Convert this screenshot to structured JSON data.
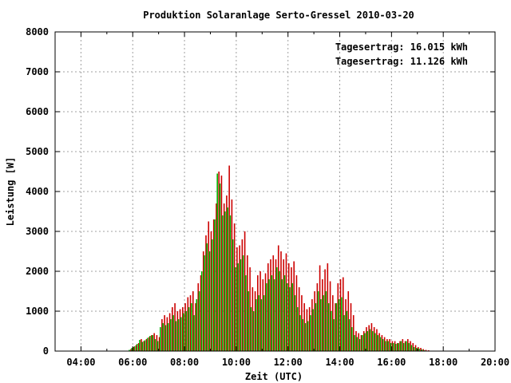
{
  "chart_data": {
    "type": "bar",
    "title": "Produktion Solaranlage Serto-Gressel 2010-03-20",
    "xlabel": "Zeit (UTC)",
    "ylabel": "Leistung [W]",
    "xlim": [
      3,
      20
    ],
    "ylim": [
      0,
      8000
    ],
    "x_ticks": [
      "04:00",
      "06:00",
      "08:00",
      "10:00",
      "12:00",
      "14:00",
      "16:00",
      "18:00",
      "20:00"
    ],
    "y_ticks": [
      "0",
      "1000",
      "2000",
      "3000",
      "4000",
      "5000",
      "6000",
      "7000",
      "8000"
    ],
    "grid": true,
    "legend": "top-right",
    "annotations": [
      {
        "text": "Tagesertrag: 16.015 kWh",
        "color": "#cc0000"
      },
      {
        "text": "Tagesertrag: 11.126 kWh",
        "color": "#00b300"
      }
    ],
    "series": [
      {
        "color": "#cc0000",
        "x": [
          5.9,
          6.0,
          6.1,
          6.2,
          6.3,
          6.4,
          6.5,
          6.6,
          6.7,
          6.8,
          6.9,
          7.0,
          7.1,
          7.2,
          7.3,
          7.4,
          7.5,
          7.6,
          7.7,
          7.8,
          7.9,
          8.0,
          8.1,
          8.2,
          8.3,
          8.4,
          8.5,
          8.6,
          8.7,
          8.8,
          8.9,
          9.0,
          9.1,
          9.2,
          9.3,
          9.4,
          9.5,
          9.6,
          9.7,
          9.8,
          9.9,
          10.0,
          10.1,
          10.2,
          10.3,
          10.4,
          10.5,
          10.6,
          10.7,
          10.8,
          10.9,
          11.0,
          11.1,
          11.2,
          11.3,
          11.4,
          11.5,
          11.6,
          11.7,
          11.8,
          11.9,
          12.0,
          12.1,
          12.2,
          12.3,
          12.4,
          12.5,
          12.6,
          12.7,
          12.8,
          12.9,
          13.0,
          13.1,
          13.2,
          13.3,
          13.4,
          13.5,
          13.6,
          13.7,
          13.8,
          13.9,
          14.0,
          14.1,
          14.2,
          14.3,
          14.4,
          14.5,
          14.6,
          14.7,
          14.8,
          14.9,
          15.0,
          15.1,
          15.2,
          15.3,
          15.4,
          15.5,
          15.6,
          15.7,
          15.8,
          15.9,
          16.0,
          16.1,
          16.2,
          16.3,
          16.4,
          16.5,
          16.6,
          16.7,
          16.8,
          16.9,
          17.0,
          17.1,
          17.2,
          17.3,
          17.4,
          17.5
        ],
        "values": [
          50,
          100,
          150,
          200,
          300,
          250,
          300,
          350,
          400,
          450,
          400,
          350,
          800,
          900,
          850,
          950,
          1100,
          1200,
          1000,
          1050,
          1100,
          1200,
          1350,
          1400,
          1500,
          1200,
          1700,
          1900,
          2500,
          2900,
          3250,
          3000,
          3300,
          3700,
          4500,
          4400,
          3700,
          3900,
          4650,
          3800,
          3200,
          2600,
          2650,
          2800,
          3000,
          2400,
          2100,
          1600,
          1500,
          1900,
          2000,
          1800,
          1950,
          2200,
          2300,
          2400,
          2300,
          2650,
          2500,
          2300,
          2450,
          2200,
          2100,
          2250,
          1900,
          1600,
          1400,
          1200,
          1050,
          1100,
          1300,
          1500,
          1700,
          2150,
          1800,
          2050,
          2200,
          1750,
          1400,
          1200,
          1700,
          1800,
          1850,
          1300,
          1500,
          1200,
          900,
          500,
          450,
          400,
          500,
          600,
          650,
          700,
          600,
          550,
          450,
          400,
          350,
          300,
          300,
          250,
          250,
          200,
          250,
          300,
          250,
          300,
          250,
          200,
          150,
          100,
          80,
          50,
          30,
          20,
          10
        ]
      },
      {
        "color": "#00b300",
        "x": [
          5.9,
          6.0,
          6.1,
          6.2,
          6.3,
          6.4,
          6.5,
          6.6,
          6.7,
          6.8,
          6.9,
          7.0,
          7.1,
          7.2,
          7.3,
          7.4,
          7.5,
          7.6,
          7.7,
          7.8,
          7.9,
          8.0,
          8.1,
          8.2,
          8.3,
          8.4,
          8.5,
          8.6,
          8.7,
          8.8,
          8.9,
          9.0,
          9.1,
          9.2,
          9.3,
          9.4,
          9.5,
          9.6,
          9.7,
          9.8,
          9.9,
          10.0,
          10.1,
          10.2,
          10.3,
          10.4,
          10.5,
          10.6,
          10.7,
          10.8,
          10.9,
          11.0,
          11.1,
          11.2,
          11.3,
          11.4,
          11.5,
          11.6,
          11.7,
          11.8,
          11.9,
          12.0,
          12.1,
          12.2,
          12.3,
          12.4,
          12.5,
          12.6,
          12.7,
          12.8,
          12.9,
          13.0,
          13.1,
          13.2,
          13.3,
          13.4,
          13.5,
          13.6,
          13.7,
          13.8,
          13.9,
          14.0,
          14.1,
          14.2,
          14.3,
          14.4,
          14.5,
          14.6,
          14.7,
          14.8,
          14.9,
          15.0,
          15.1,
          15.2,
          15.3,
          15.4,
          15.5,
          15.6,
          15.7,
          15.8,
          15.9,
          16.0,
          16.1,
          16.2,
          16.3,
          16.4,
          16.5,
          16.6,
          16.7,
          16.8,
          16.9,
          17.0,
          17.1,
          17.2,
          17.3,
          17.4,
          17.5
        ],
        "values": [
          30,
          80,
          120,
          180,
          280,
          230,
          270,
          330,
          380,
          400,
          300,
          250,
          600,
          700,
          650,
          700,
          800,
          900,
          750,
          800,
          850,
          950,
          1000,
          1100,
          1200,
          900,
          1300,
          1500,
          2000,
          2400,
          2700,
          2500,
          2800,
          3300,
          4450,
          4200,
          3400,
          3500,
          3600,
          3400,
          2800,
          2100,
          2200,
          2300,
          2400,
          1900,
          1500,
          1100,
          1000,
          1300,
          1400,
          1300,
          1400,
          1700,
          1800,
          1900,
          1800,
          2100,
          2000,
          1800,
          1900,
          1700,
          1600,
          1700,
          1400,
          1100,
          900,
          800,
          700,
          750,
          900,
          1050,
          1200,
          1500,
          1300,
          1400,
          1500,
          1200,
          1000,
          800,
          1200,
          1300,
          1350,
          900,
          1000,
          800,
          600,
          400,
          350,
          300,
          400,
          450,
          500,
          550,
          500,
          450,
          400,
          350,
          300,
          250,
          250,
          200,
          200,
          180,
          200,
          250,
          200,
          250,
          200,
          150,
          100,
          80,
          60,
          40,
          20,
          10,
          5
        ]
      }
    ]
  }
}
